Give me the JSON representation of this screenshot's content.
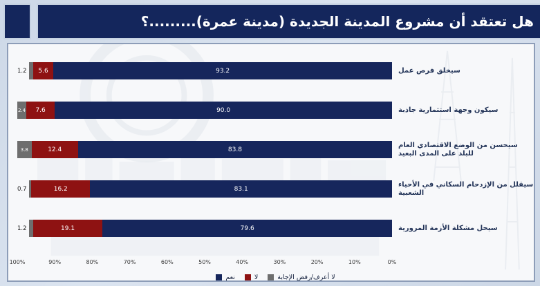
{
  "title": {
    "text": "هل تعتقد أن مشروع المدينة الجديدة (مدينة عمرة).........؟"
  },
  "colors": {
    "yes": "#16265c",
    "no": "#8e1212",
    "dk": "#6e6e6e",
    "title_bg": "#14265c"
  },
  "chart_data": {
    "type": "bar",
    "orientation": "horizontal",
    "stacked": true,
    "rtl": true,
    "title": "هل تعتقد أن مشروع المدينة الجديدة (مدينة عمرة).........؟",
    "categories": [
      "سيخلق فرص عمل",
      "سيكون وجهة استثمارية جاذبة",
      "سيحسن من الوضع الاقتصادي العام للبلد على المدى البعيد",
      "سيقلل من الإزدحام السكاني في الأحياء الشعبية",
      "سيحل مشكلة الأزمة المرورية"
    ],
    "series": [
      {
        "name": "نعم",
        "color": "#16265c",
        "values": [
          93.2,
          90.0,
          83.8,
          83.1,
          79.6
        ]
      },
      {
        "name": "لا",
        "color": "#8e1212",
        "values": [
          5.6,
          7.6,
          12.4,
          16.2,
          19.1
        ]
      },
      {
        "name": "لا أعرف/رفض الإجابة",
        "color": "#6e6e6e",
        "values": [
          1.2,
          2.4,
          3.8,
          0.7,
          1.2
        ]
      }
    ],
    "x_axis": {
      "ticks": [
        "100%",
        "90%",
        "80%",
        "70%",
        "60%",
        "50%",
        "40%",
        "30%",
        "20%",
        "10%",
        "0%"
      ],
      "min": 0,
      "max": 100,
      "reversed": true,
      "grid": false
    },
    "legend_position": "bottom-center",
    "value_labels": "one-decimal-inside-white"
  },
  "legend": [
    {
      "label": "نعم",
      "color": "#16265c"
    },
    {
      "label": "لا",
      "color": "#8e1212"
    },
    {
      "label": "لا أعرف/رفض الإجابة",
      "color": "#6e6e6e"
    }
  ]
}
